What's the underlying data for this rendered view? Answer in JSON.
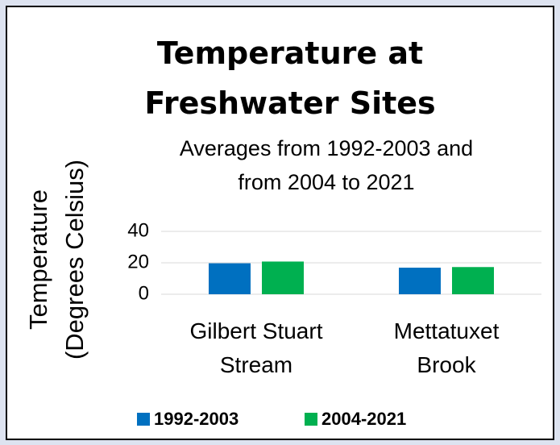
{
  "chart_data": {
    "type": "bar",
    "title": "Temperature at Freshwater Sites",
    "subtitle": "Averages from 1992-2003 and from 2004 to 2021",
    "y_label": "Temperature (Degrees Celsius)",
    "categories": [
      "Gilbert Stuart Stream",
      "Mettatuxet Brook"
    ],
    "series": [
      {
        "name": "1992-2003",
        "color": "#0070c0",
        "values": [
          19.7,
          16.9
        ]
      },
      {
        "name": "2004-2021",
        "color": "#00b050",
        "values": [
          20.8,
          17.3
        ]
      }
    ],
    "ylim": [
      0,
      40
    ],
    "yticks": [
      0,
      20,
      40
    ],
    "grid": true
  }
}
